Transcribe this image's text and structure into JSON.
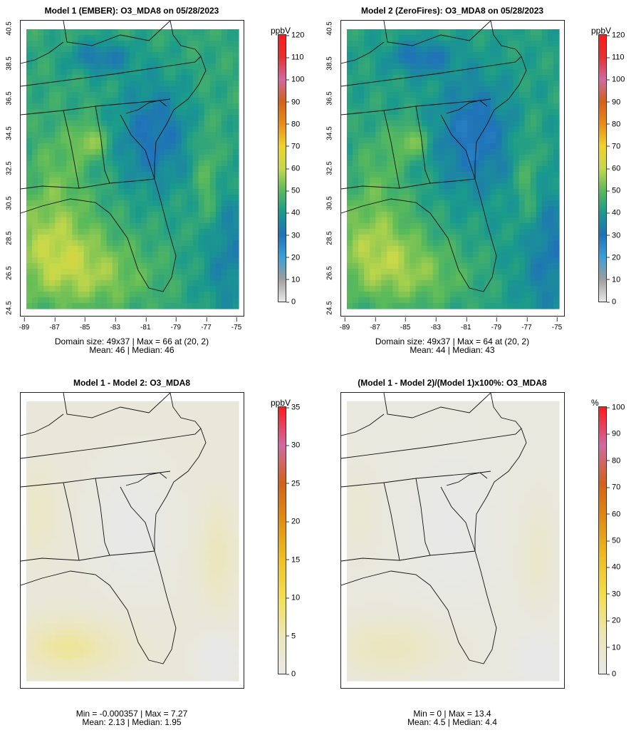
{
  "chart_data": [
    {
      "type": "heatmap",
      "title": "Model 1 (EMBER): O3_MDA8 on 05/28/2023",
      "unit": "ppbV",
      "colorbar_ticks": [
        "120",
        "110",
        "100",
        "90",
        "80",
        "70",
        "60",
        "50",
        "40",
        "30",
        "20",
        "10",
        "0"
      ],
      "colorbar_range": [
        0,
        120
      ],
      "x_ticks": [
        "-89",
        "-87",
        "-85",
        "-83",
        "-81",
        "-79",
        "-77",
        "-75"
      ],
      "y_ticks": [
        "40.5",
        "38.5",
        "36.5",
        "34.5",
        "32.5",
        "30.5",
        "28.5",
        "26.5",
        "24.5"
      ],
      "stats_line1": "Domain size: 49x37 | Max = 66 at (20, 2)",
      "stats_line2": "Mean: 46 |  Median: 46",
      "domain_size": "49x37",
      "max": 66,
      "mean": 46,
      "median": 46
    },
    {
      "type": "heatmap",
      "title": "Model 2 (ZeroFires): O3_MDA8 on 05/28/2023",
      "unit": "ppbV",
      "colorbar_ticks": [
        "120",
        "110",
        "100",
        "90",
        "80",
        "70",
        "60",
        "50",
        "40",
        "30",
        "20",
        "10",
        "0"
      ],
      "colorbar_range": [
        0,
        120
      ],
      "x_ticks": [
        "-89",
        "-87",
        "-85",
        "-83",
        "-81",
        "-79",
        "-77",
        "-75"
      ],
      "y_ticks": [
        "40.5",
        "38.5",
        "36.5",
        "34.5",
        "32.5",
        "30.5",
        "28.5",
        "26.5",
        "24.5"
      ],
      "stats_line1": "Domain size: 49x37 | Max = 64 at (20, 2)",
      "stats_line2": "Mean: 44 |  Median: 43",
      "domain_size": "49x37",
      "max": 64,
      "mean": 44,
      "median": 43
    },
    {
      "type": "heatmap",
      "title": "Model 1 - Model 2: O3_MDA8",
      "unit": "ppbV",
      "colorbar_ticks": [
        "35",
        "30",
        "25",
        "20",
        "15",
        "10",
        "5",
        "0"
      ],
      "colorbar_range": [
        0,
        35
      ],
      "stats_line1": "Min = -0.000357 | Max = 7.27",
      "stats_line2": "Mean: 2.13 |  Median: 1.95",
      "min": -0.000357,
      "max": 7.27,
      "mean": 2.13,
      "median": 1.95
    },
    {
      "type": "heatmap",
      "title": "(Model 1 - Model 2)/(Model 1)x100%: O3_MDA8",
      "unit": "%",
      "colorbar_ticks": [
        "100",
        "90",
        "80",
        "70",
        "60",
        "50",
        "40",
        "30",
        "20",
        "10",
        "0"
      ],
      "colorbar_range": [
        0,
        100
      ],
      "stats_line1": "Min = 0 | Max = 13.4",
      "stats_line2": "Mean: 4.5 |  Median: 4.4",
      "min": 0,
      "max": 13.4,
      "mean": 4.5,
      "median": 4.4
    }
  ],
  "colors": {
    "o3_scale": [
      "#e8e8e8",
      "#9e9e9e",
      "#3aa0d8",
      "#1f72b8",
      "#1a9a8c",
      "#5aba5a",
      "#c6d84a",
      "#f0d22a",
      "#e88c18",
      "#d2611a",
      "#d06aa0",
      "#e63030",
      "#ff1a1a"
    ],
    "diff_scale": [
      "#e8e8e8",
      "#ece6b8",
      "#f2e050",
      "#f0c020",
      "#e09010",
      "#d2611a",
      "#d06aa0",
      "#ff1a1a"
    ]
  }
}
